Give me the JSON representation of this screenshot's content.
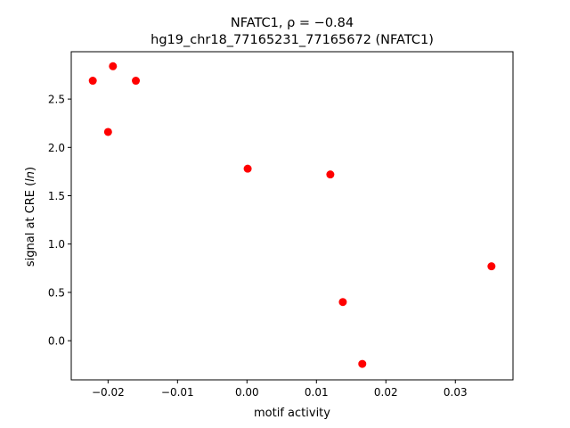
{
  "chart_data": {
    "type": "scatter",
    "title_line1": "NFATC1, ρ = −0.84",
    "title_line2": "hg19_chr18_77165231_77165672 (NFATC1)",
    "xlabel": "motif activity",
    "ylabel_prefix": "signal at CRE (",
    "ylabel_italic": "ln",
    "ylabel_suffix": ")",
    "xlim": [
      -0.0253,
      0.0383
    ],
    "ylim": [
      -0.405,
      2.99
    ],
    "xticks": [
      {
        "value": -0.02,
        "label": "−0.02"
      },
      {
        "value": -0.01,
        "label": "−0.01"
      },
      {
        "value": 0.0,
        "label": "0.00"
      },
      {
        "value": 0.01,
        "label": "0.01"
      },
      {
        "value": 0.02,
        "label": "0.02"
      },
      {
        "value": 0.03,
        "label": "0.03"
      }
    ],
    "yticks": [
      {
        "value": 0.0,
        "label": "0.0"
      },
      {
        "value": 0.5,
        "label": "0.5"
      },
      {
        "value": 1.0,
        "label": "1.0"
      },
      {
        "value": 1.5,
        "label": "1.5"
      },
      {
        "value": 2.0,
        "label": "2.0"
      },
      {
        "value": 2.5,
        "label": "2.5"
      }
    ],
    "grid": false,
    "marker_color": "#ff0000",
    "points": [
      {
        "x": -0.0222,
        "y": 2.69
      },
      {
        "x": -0.0193,
        "y": 2.84
      },
      {
        "x": -0.016,
        "y": 2.69
      },
      {
        "x": -0.02,
        "y": 2.16
      },
      {
        "x": 0.0001,
        "y": 1.78
      },
      {
        "x": 0.012,
        "y": 1.72
      },
      {
        "x": 0.0138,
        "y": 0.4
      },
      {
        "x": 0.0166,
        "y": -0.24
      },
      {
        "x": 0.0352,
        "y": 0.77
      }
    ]
  }
}
